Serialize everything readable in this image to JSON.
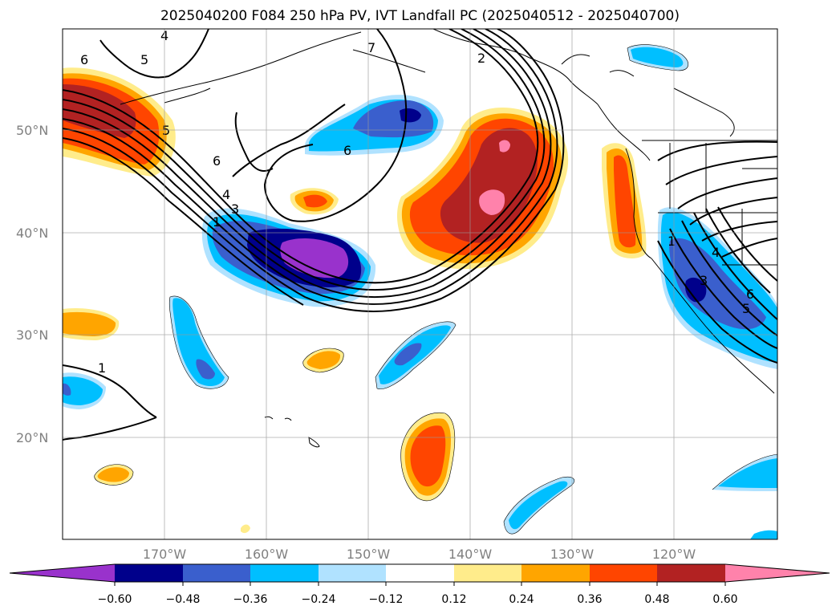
{
  "title": "2025040200 F084 250 hPa PV, IVT Landfall PC (2025040512 - 2025040700)",
  "map": {
    "lat_labels": [
      "50°N",
      "40°N",
      "30°N",
      "20°N"
    ],
    "lon_labels": [
      "170°W",
      "160°W",
      "150°W",
      "140°W",
      "130°W",
      "120°W"
    ],
    "contour_labels": [
      "4",
      "5",
      "6",
      "7",
      "2",
      "5",
      "6",
      "6",
      "4",
      "3",
      "1",
      "1",
      "1",
      "4",
      "3",
      "6",
      "5"
    ]
  },
  "colorbar": {
    "ticks": [
      "−0.60",
      "−0.48",
      "−0.36",
      "−0.24",
      "−0.12",
      "0.12",
      "0.24",
      "0.36",
      "0.48",
      "0.60"
    ],
    "colors": [
      "#9932CC",
      "#00008B",
      "#3A5FCD",
      "#00BFFF",
      "#B0E2FF",
      "#FFFFFF",
      "#FFEC8B",
      "#FFA500",
      "#FF4500",
      "#B22222",
      "#FF82AB"
    ]
  }
}
